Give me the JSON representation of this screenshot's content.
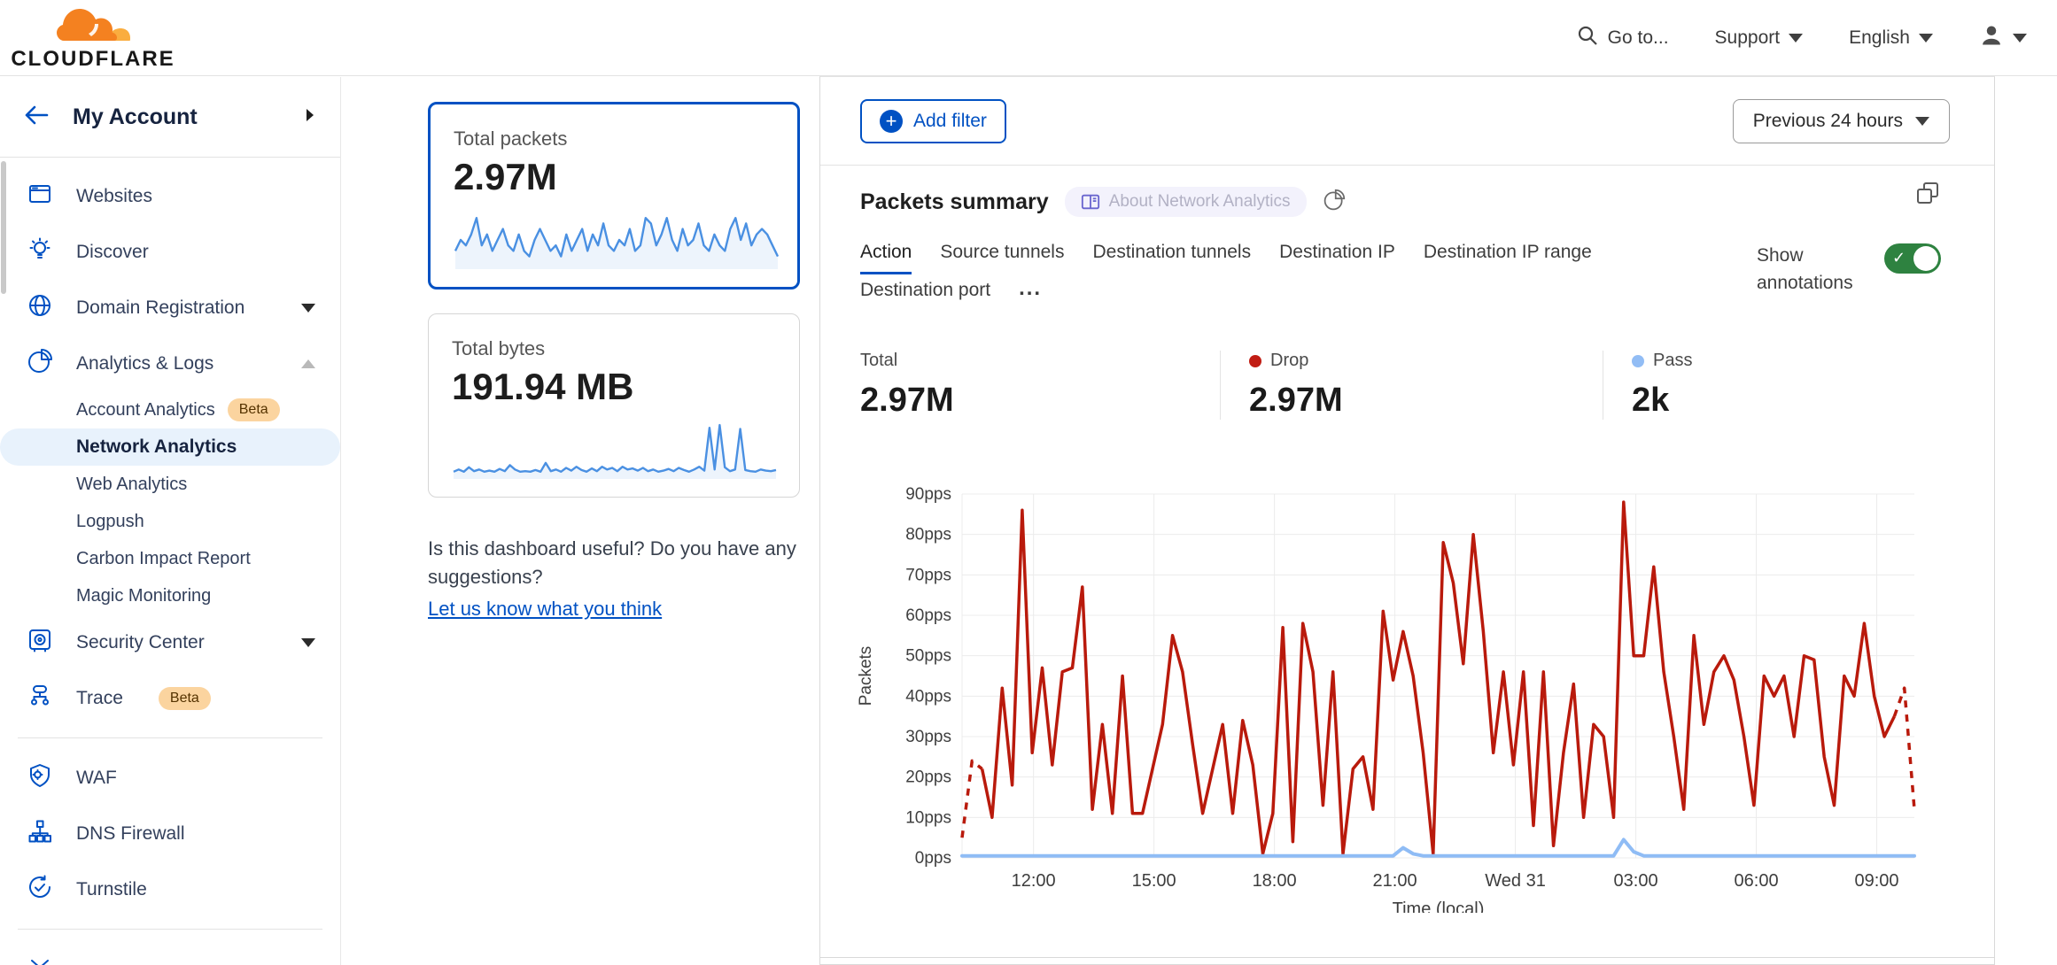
{
  "header": {
    "logo_text": "CLOUDFLARE",
    "nav": {
      "goto": "Go to...",
      "support": "Support",
      "language": "English"
    }
  },
  "sidebar": {
    "account_label": "My Account",
    "items": [
      {
        "label": "Websites",
        "icon": "browser-icon",
        "type": "top"
      },
      {
        "label": "Discover",
        "icon": "lightbulb-icon",
        "type": "top"
      },
      {
        "label": "Domain Registration",
        "icon": "globe-icon",
        "type": "top",
        "caret": "down"
      },
      {
        "label": "Analytics & Logs",
        "icon": "pie-icon",
        "type": "top",
        "caret": "up"
      },
      {
        "label": "Account Analytics",
        "type": "sub",
        "badge": "Beta"
      },
      {
        "label": "Network Analytics",
        "type": "sub",
        "selected": true
      },
      {
        "label": "Web Analytics",
        "type": "sub"
      },
      {
        "label": "Logpush",
        "type": "sub"
      },
      {
        "label": "Carbon Impact Report",
        "type": "sub"
      },
      {
        "label": "Magic Monitoring",
        "type": "sub"
      },
      {
        "label": "Security Center",
        "icon": "safe-icon",
        "type": "top",
        "caret": "down"
      },
      {
        "label": "Trace",
        "icon": "trace-icon",
        "type": "top",
        "badge": "Beta",
        "divider_after": true
      },
      {
        "label": "WAF",
        "icon": "shield-gear-icon",
        "type": "top"
      },
      {
        "label": "DNS Firewall",
        "icon": "network-tree-icon",
        "type": "top"
      },
      {
        "label": "Turnstile",
        "icon": "rotate-check-icon",
        "type": "top",
        "divider_after": true
      },
      {
        "label": "",
        "icon": "sparkle-icon",
        "type": "top",
        "partial": true
      }
    ]
  },
  "summary_cards": [
    {
      "title": "Total packets",
      "value": "2.97M",
      "selected": true,
      "sparkline": [
        3,
        5,
        4,
        6,
        9,
        4,
        6,
        3,
        5,
        7,
        4,
        3,
        6,
        3,
        2,
        5,
        7,
        5,
        3,
        4,
        2,
        6,
        3,
        5,
        7,
        3,
        6,
        4,
        8,
        4,
        3,
        5,
        4,
        7,
        3,
        4,
        9,
        8,
        4,
        6,
        9,
        5,
        3,
        7,
        4,
        5,
        8,
        4,
        3,
        6,
        4,
        3,
        7,
        9,
        5,
        8,
        4,
        6,
        7,
        6,
        4,
        2
      ]
    },
    {
      "title": "Total bytes",
      "value": "191.94 MB",
      "selected": false,
      "sparkline": [
        1,
        1.4,
        1,
        1.8,
        1.1,
        1.4,
        1,
        1.2,
        1,
        1.5,
        1.1,
        2.2,
        1.4,
        1,
        1.1,
        1,
        1.3,
        1,
        2.6,
        1.1,
        1.4,
        1,
        1.7,
        1.2,
        1.9,
        1.3,
        1,
        1.6,
        1.1,
        1.9,
        1.4,
        1.7,
        1.1,
        1.9,
        1.4,
        1.6,
        1.2,
        1.7,
        1.1,
        1.4,
        1,
        1.2,
        1.5,
        1.1,
        1.7,
        1.3,
        1,
        1.4,
        1.9,
        1.2,
        9,
        1.4,
        9.5,
        1.8,
        1.1,
        1.4,
        8.8,
        1.3,
        1.1,
        1,
        1.4,
        1.2,
        1.1,
        1.3
      ]
    }
  ],
  "feedback": {
    "question": "Is this dashboard useful? Do you have any suggestions?",
    "link": "Let us know what you think"
  },
  "toolbar": {
    "add_filter": "Add filter",
    "time_range": "Previous 24 hours"
  },
  "panel": {
    "title": "Packets summary",
    "about_tag": "About Network Analytics",
    "tabs_row1": [
      "Action",
      "Source tunnels",
      "Destination tunnels",
      "Destination IP",
      "Destination IP range"
    ],
    "tabs_row2": [
      "Destination port"
    ],
    "more_tab": "...",
    "active_tab": "Action",
    "show_annotations": "Show annotations",
    "annotations_on": true,
    "stats": [
      {
        "label": "Total",
        "value": "2.97M"
      },
      {
        "label": "Drop",
        "value": "2.97M",
        "dot": "#c11d14"
      },
      {
        "label": "Pass",
        "value": "2k",
        "dot": "#92bdf5"
      }
    ]
  },
  "chart_data": {
    "type": "line",
    "title": "Packets summary",
    "xlabel": "Time (local)",
    "ylabel": "Packets",
    "ylim": [
      0,
      90
    ],
    "grid": true,
    "y_ticks": [
      "0pps",
      "10pps",
      "20pps",
      "30pps",
      "40pps",
      "50pps",
      "60pps",
      "70pps",
      "80pps",
      "90pps"
    ],
    "x_ticks": [
      "12:00",
      "15:00",
      "18:00",
      "21:00",
      "Wed 31",
      "03:00",
      "06:00",
      "09:00"
    ],
    "series": [
      {
        "name": "Drop",
        "color": "#b91a0c",
        "values": [
          5,
          24,
          22,
          10,
          42,
          18,
          86,
          26,
          47,
          23,
          46,
          47,
          67,
          12,
          33,
          11,
          45,
          11,
          11,
          22,
          33,
          55,
          46,
          28,
          11,
          22,
          33,
          11,
          34,
          23,
          1,
          11,
          57,
          4,
          58,
          46,
          13,
          46,
          1,
          22,
          25,
          12,
          61,
          44,
          56,
          45,
          26,
          1,
          78,
          68,
          48,
          80,
          56,
          26,
          46,
          23,
          46,
          8,
          46,
          3,
          26,
          43,
          10,
          33,
          30,
          10,
          88,
          50,
          50,
          72,
          46,
          30,
          12,
          55,
          33,
          46,
          50,
          44,
          30,
          13,
          45,
          40,
          45,
          30,
          50,
          49,
          25,
          13,
          45,
          40,
          58,
          40,
          30,
          35,
          42,
          12
        ],
        "dashed_head_points": 2,
        "dashed_tail_points": 2
      },
      {
        "name": "Pass",
        "color": "#8fbcf5",
        "values": [
          0.5,
          0.5,
          0.5,
          0.5,
          0.5,
          0.5,
          0.5,
          0.5,
          0.5,
          0.5,
          0.5,
          0.5,
          0.5,
          0.5,
          0.5,
          0.5,
          0.5,
          0.5,
          0.5,
          0.5,
          0.5,
          0.5,
          0.5,
          0.5,
          0.5,
          0.5,
          0.5,
          0.5,
          0.5,
          0.5,
          0.5,
          0.5,
          0.5,
          0.5,
          0.5,
          0.5,
          0.5,
          0.5,
          0.5,
          0.5,
          0.5,
          0.5,
          0.5,
          0.5,
          2.5,
          1,
          0.5,
          0.5,
          0.5,
          0.5,
          0.5,
          0.5,
          0.5,
          0.5,
          0.5,
          0.5,
          0.5,
          0.5,
          0.5,
          0.5,
          0.5,
          0.5,
          0.5,
          0.5,
          0.5,
          0.5,
          4.5,
          1.5,
          0.5,
          0.5,
          0.5,
          0.5,
          0.5,
          0.5,
          0.5,
          0.5,
          0.5,
          0.5,
          0.5,
          0.5,
          0.5,
          0.5,
          0.5,
          0.5,
          0.5,
          0.5,
          0.5,
          0.5,
          0.5,
          0.5,
          0.5,
          0.5,
          0.5,
          0.5,
          0.5,
          0.5
        ]
      }
    ]
  },
  "colors": {
    "brand_blue": "#0051c3",
    "drop_red": "#b91a0c",
    "pass_blue": "#8fbcf5",
    "toggle_green": "#2e8240",
    "sparkline_blue": "#4a90e2"
  }
}
